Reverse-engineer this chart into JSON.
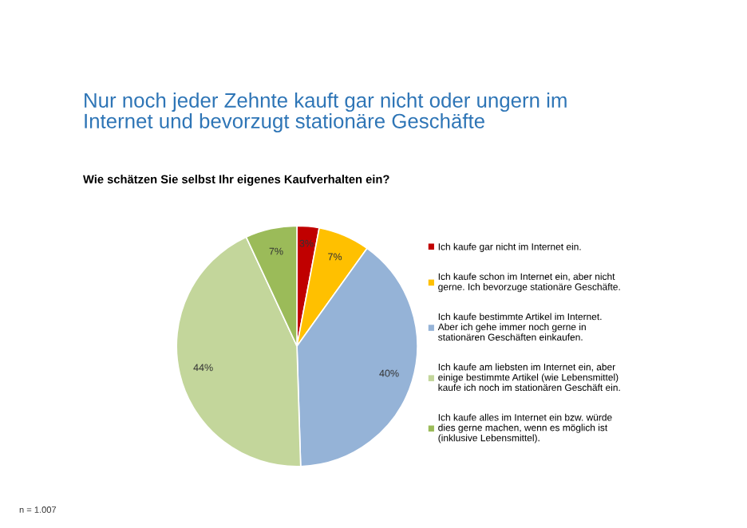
{
  "chart_data": {
    "type": "pie",
    "title": "Nur noch jeder Zehnte kauft gar nicht oder ungern im\nInternet und bevorzugt stationäre Geschäfte",
    "subtitle": "Wie schätzen Sie selbst Ihr eigenes Kaufverhalten ein?",
    "categories": [
      "Ich kaufe gar nicht im Internet ein.",
      "Ich kaufe schon im Internet ein, aber nicht\ngerne. Ich bevorzuge stationäre Geschäfte.",
      "Ich kaufe bestimmte Artikel im Internet.\nAber ich gehe immer noch gerne in\nstationären Geschäften einkaufen.",
      "Ich kaufe am liebsten im Internet ein, aber\neinige bestimmte Artikel (wie Lebensmittel)\nkaufe ich noch im stationären Geschäft ein.",
      "Ich kaufe alles im Internet ein bzw. würde\ndies gerne machen, wenn es möglich ist\n(inklusive Lebensmittel)."
    ],
    "values": [
      3,
      7,
      40,
      44,
      7
    ],
    "colors": [
      "#c00000",
      "#ffc000",
      "#95b3d7",
      "#c3d69b",
      "#9bbb59"
    ],
    "value_labels": [
      "3%",
      "7%",
      "40%",
      "44%",
      "7%"
    ],
    "legend": "right",
    "annotations": [
      "n = 1.007"
    ]
  }
}
